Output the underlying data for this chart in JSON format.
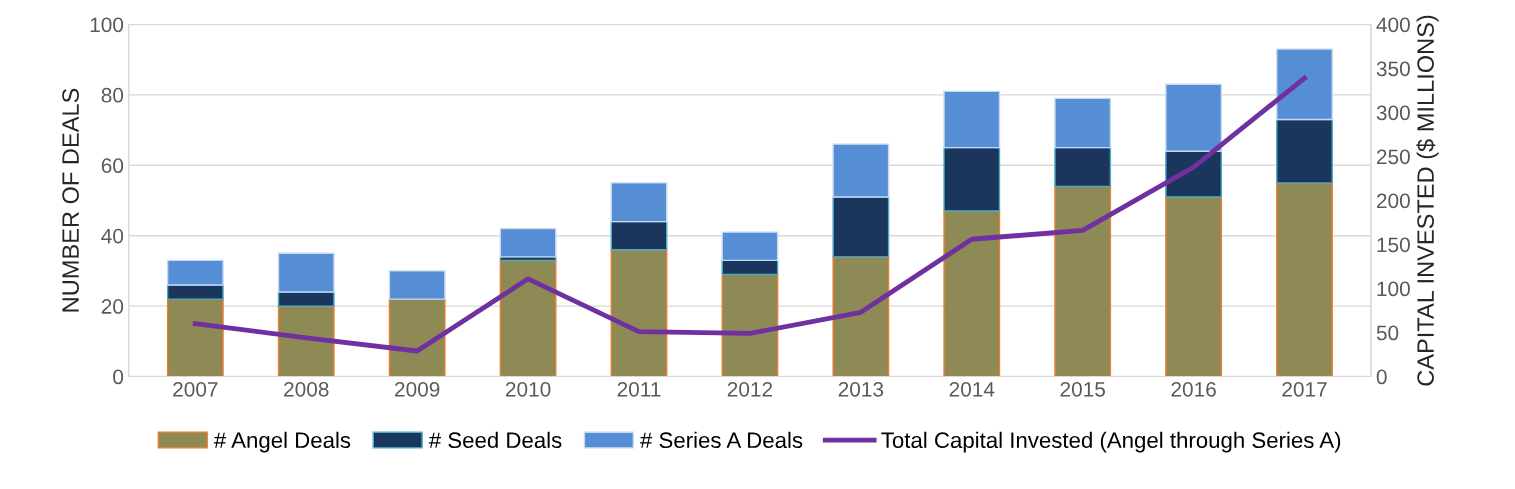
{
  "chart_data": {
    "type": "bar",
    "stacked": true,
    "categories": [
      "2007",
      "2008",
      "2009",
      "2010",
      "2011",
      "2012",
      "2013",
      "2014",
      "2015",
      "2016",
      "2017"
    ],
    "series": [
      {
        "name": "# Angel Deals",
        "color": "#8d8a55",
        "values": [
          22,
          20,
          22,
          33,
          36,
          29,
          34,
          47,
          54,
          51,
          55
        ]
      },
      {
        "name": "# Seed Deals",
        "color": "#1b365d",
        "values": [
          4,
          4,
          0,
          1,
          8,
          4,
          17,
          18,
          11,
          13,
          18
        ]
      },
      {
        "name": "# Series A Deals",
        "color": "#558ed5",
        "values": [
          7,
          11,
          8,
          8,
          11,
          8,
          15,
          16,
          14,
          19,
          20
        ]
      },
      {
        "name": "Total Capital Invested (Angel through Series A)",
        "type": "line",
        "axis": "y2",
        "color": "#7030a0",
        "values": [
          60,
          44,
          29,
          111,
          51,
          49,
          73,
          156,
          166,
          238,
          339
        ]
      }
    ],
    "ylabel": "NUMBER OF DEALS",
    "y2label": "CAPITAL INVESTED ($ MILLIONS)",
    "ylim": [
      0,
      100
    ],
    "yticks": [
      0,
      20,
      40,
      60,
      80,
      100
    ],
    "y2lim": [
      0,
      400
    ],
    "y2ticks": [
      0,
      50,
      100,
      150,
      200,
      250,
      300,
      350,
      400
    ],
    "grid": "y",
    "legend": "bottom",
    "line_style": "solid",
    "marker": "none"
  }
}
